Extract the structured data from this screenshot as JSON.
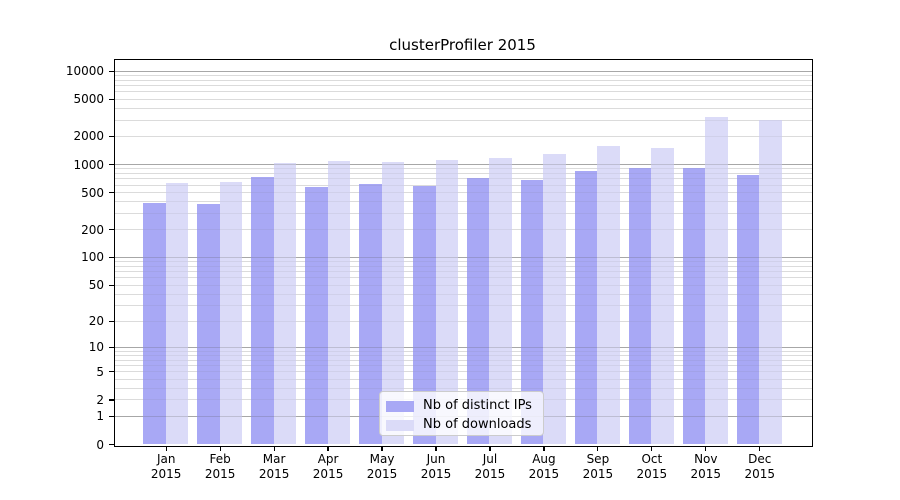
{
  "chart_data": {
    "type": "bar",
    "title": "clusterProfiler 2015",
    "categories": [
      "Jan",
      "Feb",
      "Mar",
      "Apr",
      "May",
      "Jun",
      "Jul",
      "Aug",
      "Sep",
      "Oct",
      "Nov",
      "Dec"
    ],
    "category_year": "2015",
    "series": [
      {
        "name": "Nb of distinct IPs",
        "color": "#a8a8f5",
        "values": [
          378,
          370,
          735,
          570,
          618,
          580,
          705,
          676,
          850,
          915,
          900,
          770
        ]
      },
      {
        "name": "Nb of downloads",
        "color": "#dbdbf8",
        "values": [
          632,
          635,
          1020,
          1080,
          1060,
          1110,
          1150,
          1280,
          1570,
          1500,
          3190,
          3000
        ]
      }
    ],
    "y_scale": "log1p",
    "y_ticks": [
      10000,
      5000,
      2000,
      1000,
      500,
      200,
      100,
      50,
      20,
      10,
      5,
      2,
      1,
      0
    ],
    "y_major_gridlines": [
      1,
      10,
      100,
      1000,
      10000
    ],
    "ylim": [
      0,
      12500
    ],
    "grid": true,
    "legend_position": "bottom-center",
    "colors": {
      "minor_grid": "#e7e7e7",
      "major_grid": "#bfbfbf",
      "axis": "#000000",
      "background": "#ffffff"
    }
  },
  "legend": {
    "items": [
      {
        "label": "Nb of distinct IPs"
      },
      {
        "label": "Nb of downloads"
      }
    ]
  }
}
